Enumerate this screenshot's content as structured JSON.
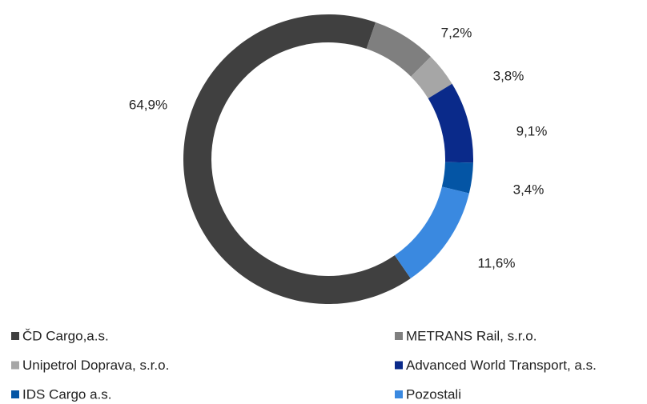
{
  "chart_data": {
    "type": "donut",
    "categories": [
      "ČD Cargo,a.s.",
      "METRANS Rail, s.r.o.",
      "Unipetrol Doprava, s.r.o.",
      "Advanced World Transport, a.s.",
      "IDS Cargo a.s.",
      "Pozostali"
    ],
    "values": [
      64.9,
      7.2,
      3.8,
      9.1,
      3.4,
      11.6
    ],
    "value_labels": [
      "64,9%",
      "7,2%",
      "3,8%",
      "9,1%",
      "3,4%",
      "11,6%"
    ],
    "colors": [
      "#404040",
      "#7f7f7f",
      "#a6a6a6",
      "#0a2a8a",
      "#0455a5",
      "#3a89e0"
    ],
    "legend": "bottom"
  }
}
